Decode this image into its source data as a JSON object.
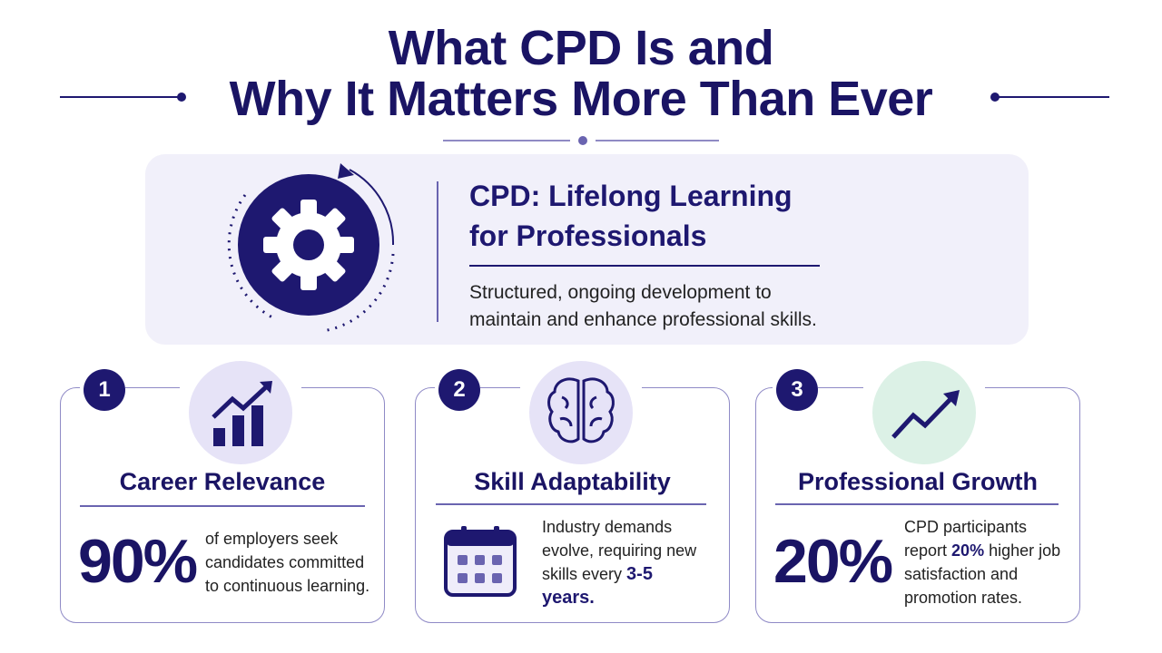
{
  "header": {
    "title_line1": "What CPD Is and",
    "title_line2": "Why It Matters More Than Ever"
  },
  "hero": {
    "heading_line1": "CPD: Lifelong Learning",
    "heading_line2": "for Professionals",
    "description_line1": "Structured, ongoing development to",
    "description_line2": "maintain and enhance professional skills."
  },
  "cards": [
    {
      "number": "1",
      "title": "Career Relevance",
      "stat": "90%",
      "body": "of employers seek candidates committed to continuous learning."
    },
    {
      "number": "2",
      "title": "Skill Adaptability",
      "body": "Industry demands evolve, requiring new skills every",
      "highlight": "3-5 years."
    },
    {
      "number": "3",
      "title": "Professional Growth",
      "stat": "20%",
      "body": "CPD participants report",
      "highlight": "20%",
      "body_after": "higher job satisfaction and promotion rates."
    }
  ]
}
